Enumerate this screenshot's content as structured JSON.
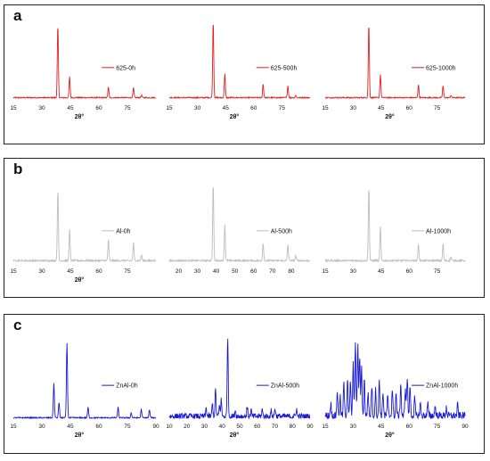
{
  "panels": [
    {
      "letter": "a"
    },
    {
      "letter": "b"
    },
    {
      "letter": "c"
    }
  ],
  "chart_data": [
    {
      "type": "line",
      "panel": "a",
      "color": "#e02020",
      "xlabel": "2θ°",
      "xlim": [
        15,
        90
      ],
      "ylim": [
        0,
        100
      ],
      "xticks": [
        15,
        30,
        45,
        60,
        75
      ],
      "legend": "625-0h",
      "peaks": [
        [
          38.4,
          90
        ],
        [
          44.6,
          26
        ],
        [
          65.0,
          13
        ],
        [
          78.2,
          12
        ],
        [
          82.4,
          3
        ]
      ],
      "noise": 0.8
    },
    {
      "type": "line",
      "panel": "a",
      "color": "#e02020",
      "xlabel": "2θ°",
      "xlim": [
        15,
        90
      ],
      "ylim": [
        0,
        100
      ],
      "xticks": [
        15,
        30,
        45,
        60,
        75
      ],
      "legend": "625-500h",
      "peaks": [
        [
          38.4,
          95
        ],
        [
          44.6,
          30
        ],
        [
          65.0,
          17
        ],
        [
          78.2,
          15
        ],
        [
          82.4,
          3
        ]
      ],
      "noise": 0.8
    },
    {
      "type": "line",
      "panel": "a",
      "color": "#e02020",
      "xlabel": "2θ°",
      "xlim": [
        15,
        90
      ],
      "ylim": [
        0,
        100
      ],
      "xticks": [
        15,
        30,
        45,
        60,
        75
      ],
      "legend": "625-1000h",
      "peaks": [
        [
          38.4,
          92
        ],
        [
          44.6,
          29
        ],
        [
          65.0,
          16
        ],
        [
          78.2,
          15
        ],
        [
          82.4,
          3
        ]
      ],
      "noise": 0.8
    },
    {
      "type": "line",
      "panel": "b",
      "color": "#bdbdbd",
      "xlabel": "2θ°",
      "xlim": [
        15,
        90
      ],
      "ylim": [
        0,
        100
      ],
      "xticks": [
        15,
        30,
        45,
        60,
        75
      ],
      "legend": "Al-0h",
      "peaks": [
        [
          38.4,
          88
        ],
        [
          44.6,
          38
        ],
        [
          65.0,
          26
        ],
        [
          78.2,
          22
        ],
        [
          82.4,
          7
        ]
      ],
      "noise": 1.2
    },
    {
      "type": "line",
      "panel": "b",
      "color": "#bdbdbd",
      "xlabel": "",
      "xlim": [
        15,
        90
      ],
      "ylim": [
        0,
        100
      ],
      "xticks": [
        20,
        30,
        40,
        50,
        60,
        70,
        80
      ],
      "legend": "Al-500h",
      "peaks": [
        [
          38.4,
          96
        ],
        [
          44.6,
          45
        ],
        [
          65.0,
          22
        ],
        [
          78.2,
          20
        ],
        [
          82.4,
          6
        ]
      ],
      "noise": 1.2
    },
    {
      "type": "line",
      "panel": "b",
      "color": "#bdbdbd",
      "xlabel": "",
      "xlim": [
        15,
        90
      ],
      "ylim": [
        0,
        100
      ],
      "xticks": [
        15,
        30,
        45,
        60,
        75
      ],
      "legend": "Al-1000h",
      "peaks": [
        [
          38.4,
          93
        ],
        [
          44.6,
          42
        ],
        [
          65.0,
          21
        ],
        [
          78.2,
          21
        ],
        [
          82.4,
          5
        ]
      ],
      "noise": 1.2
    },
    {
      "type": "line",
      "panel": "c",
      "color": "#1a1ad6",
      "xlabel": "2θ°",
      "xlim": [
        15,
        90
      ],
      "ylim": [
        0,
        100
      ],
      "xticks": [
        15,
        30,
        45,
        60,
        75,
        90
      ],
      "legend": "ZnAl-0h",
      "peaks": [
        [
          36.3,
          40
        ],
        [
          39.0,
          18
        ],
        [
          43.2,
          87
        ],
        [
          54.3,
          12
        ],
        [
          70.1,
          12
        ],
        [
          77.0,
          6
        ],
        [
          82.3,
          10
        ],
        [
          86.6,
          9
        ]
      ],
      "noise": 0.8
    },
    {
      "type": "line",
      "panel": "c",
      "color": "#1a1ad6",
      "xlabel": "2θ°",
      "xlim": [
        10,
        90
      ],
      "ylim": [
        0,
        100
      ],
      "xticks": [
        10,
        20,
        30,
        40,
        50,
        60,
        70,
        80,
        90
      ],
      "legend": "ZnAl-500h",
      "peaks": [
        [
          31.0,
          10
        ],
        [
          34.5,
          15
        ],
        [
          36.3,
          32
        ],
        [
          38.5,
          12
        ],
        [
          39.5,
          20
        ],
        [
          43.2,
          95
        ],
        [
          47.5,
          8
        ],
        [
          54.3,
          11
        ],
        [
          56.5,
          7
        ],
        [
          62.8,
          8
        ],
        [
          68.0,
          7
        ],
        [
          70.1,
          10
        ],
        [
          82.3,
          9
        ]
      ],
      "noise": 3.5
    },
    {
      "type": "line",
      "panel": "c",
      "color": "#1a1ad6",
      "xlabel": "2θ°",
      "xlim": [
        15,
        90
      ],
      "ylim": [
        0,
        100
      ],
      "xticks": [
        15,
        30,
        45,
        60,
        75,
        90
      ],
      "legend": "ZnAl-1000h",
      "peaks": [
        [
          18.0,
          15
        ],
        [
          21.5,
          30
        ],
        [
          23.0,
          22
        ],
        [
          25.0,
          38
        ],
        [
          27.0,
          45
        ],
        [
          28.5,
          38
        ],
        [
          30.0,
          60
        ],
        [
          31.2,
          88
        ],
        [
          32.5,
          82
        ],
        [
          33.5,
          70
        ],
        [
          34.5,
          55
        ],
        [
          36.0,
          42
        ],
        [
          38.0,
          28
        ],
        [
          40.0,
          36
        ],
        [
          42.0,
          30
        ],
        [
          44.0,
          42
        ],
        [
          46.0,
          28
        ],
        [
          48.5,
          22
        ],
        [
          51.0,
          32
        ],
        [
          53.0,
          26
        ],
        [
          55.5,
          38
        ],
        [
          58.0,
          33
        ],
        [
          59.0,
          45
        ],
        [
          60.5,
          35
        ],
        [
          63.0,
          20
        ],
        [
          66.0,
          15
        ],
        [
          70.0,
          14
        ],
        [
          74.0,
          12
        ],
        [
          80.0,
          10
        ],
        [
          86.0,
          12
        ]
      ],
      "noise": 4.5
    }
  ]
}
